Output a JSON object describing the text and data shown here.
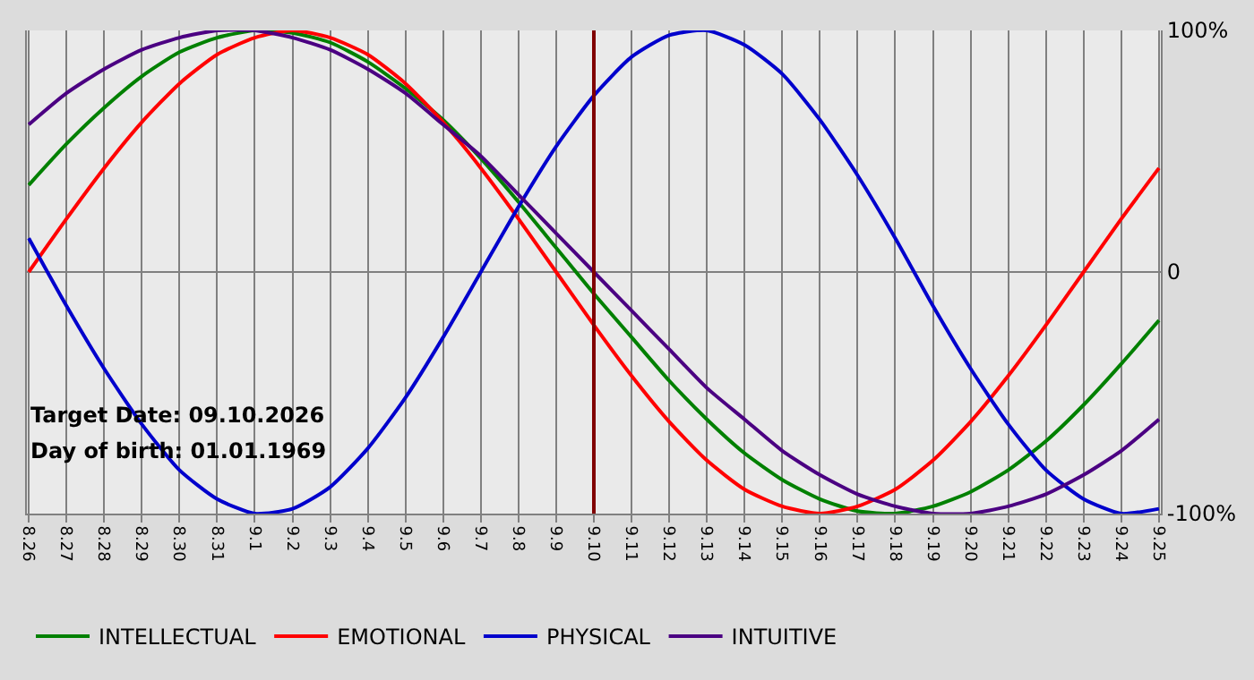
{
  "chart_data": {
    "type": "line",
    "categories": [
      "8.26",
      "8.27",
      "8.28",
      "8.29",
      "8.30",
      "8.31",
      "9.1",
      "9.2",
      "9.3",
      "9.4",
      "9.5",
      "9.6",
      "9.7",
      "9.8",
      "9.9",
      "9.10",
      "9.11",
      "9.12",
      "9.13",
      "9.14",
      "9.15",
      "9.16",
      "9.17",
      "9.18",
      "9.19",
      "9.20",
      "9.21",
      "9.22",
      "9.23",
      "9.24",
      "9.25"
    ],
    "series": [
      {
        "name": "INTELLECTUAL",
        "color": "#008000",
        "values": [
          36,
          53,
          68,
          81,
          91,
          97,
          100,
          99,
          95,
          87,
          76,
          63,
          47,
          29,
          10,
          -9,
          -27,
          -45,
          -61,
          -75,
          -86,
          -94,
          -99,
          -100,
          -97,
          -91,
          -82,
          -70,
          -55,
          -38,
          -20
        ]
      },
      {
        "name": "EMOTIONAL",
        "color": "#ff0000",
        "values": [
          0,
          22,
          43,
          62,
          78,
          90,
          97,
          100,
          97,
          90,
          78,
          62,
          43,
          22,
          0,
          -22,
          -43,
          -62,
          -78,
          -90,
          -97,
          -100,
          -97,
          -90,
          -78,
          -62,
          -43,
          -22,
          0,
          22,
          43
        ]
      },
      {
        "name": "PHYSICAL",
        "color": "#0000cc",
        "values": [
          14,
          -14,
          -40,
          -63,
          -82,
          -94,
          -100,
          -98,
          -89,
          -73,
          -52,
          -27,
          0,
          27,
          52,
          73,
          89,
          98,
          100,
          94,
          82,
          63,
          40,
          14,
          -14,
          -40,
          -63,
          -82,
          -94,
          -100,
          -98
        ]
      },
      {
        "name": "INTUITIVE",
        "color": "#4b0082",
        "values": [
          61,
          74,
          84,
          92,
          97,
          100,
          100,
          97,
          92,
          84,
          74,
          61,
          48,
          32,
          16,
          0,
          -16,
          -32,
          -48,
          -61,
          -74,
          -84,
          -92,
          -97,
          -100,
          -100,
          -97,
          -92,
          -84,
          -74,
          -61
        ]
      }
    ],
    "ylim": [
      -100,
      100
    ],
    "yticks": [
      {
        "value": 100,
        "label": "100%"
      },
      0,
      {
        "value": -100,
        "label": "-100%"
      }
    ],
    "grid": true,
    "legend": "bottom",
    "marker": "none",
    "line_style": "solid",
    "ref_lines": [
      {
        "axis": "x",
        "value": "9.10",
        "color": "#800000"
      }
    ],
    "annotations": [
      "Target Date: 09.10.2026",
      "Day of birth: 01.01.1969"
    ]
  }
}
